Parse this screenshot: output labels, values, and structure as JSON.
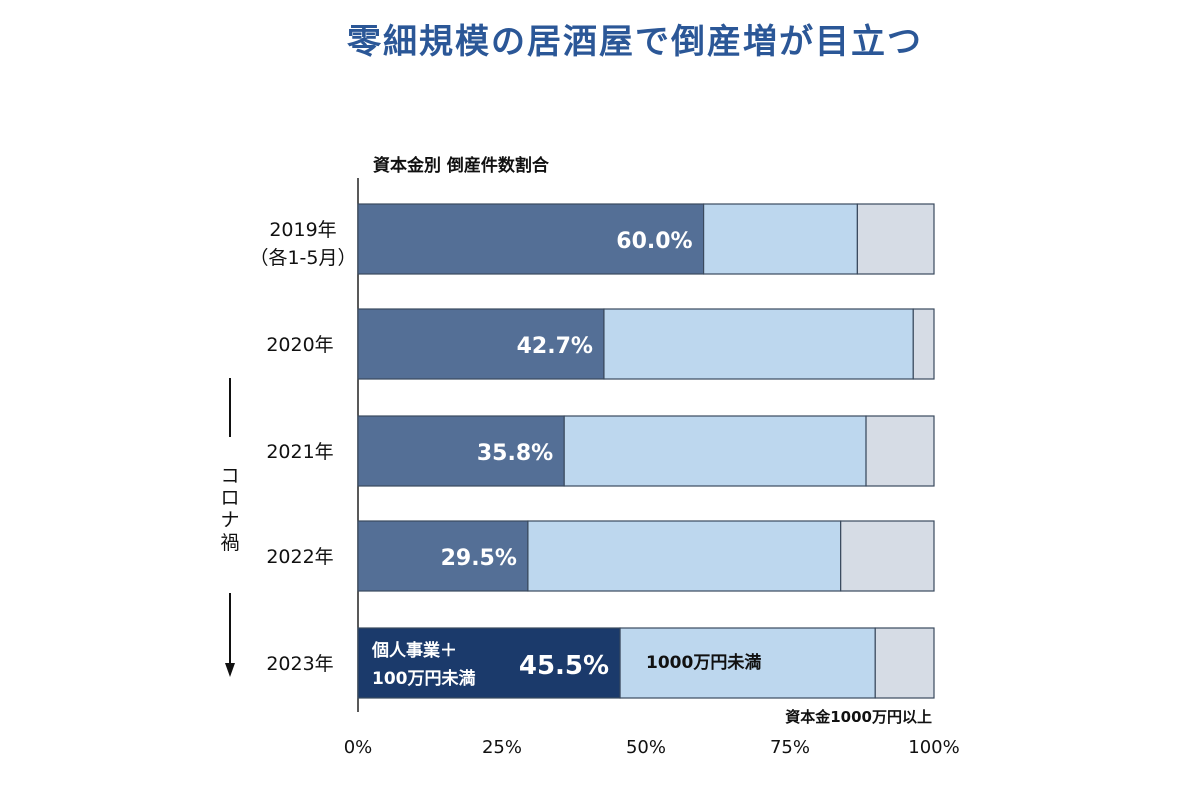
{
  "title": "零細規模の居酒屋で倒産増が目立つ",
  "chart_data": {
    "type": "bar",
    "stacked": true,
    "orientation": "horizontal",
    "subtitle": "資本金別 倒産件数割合",
    "categories": [
      [
        "2019年",
        "（各1-5月）"
      ],
      [
        "2020年"
      ],
      [
        "2021年"
      ],
      [
        "2022年"
      ],
      [
        "2023年"
      ]
    ],
    "series": [
      {
        "name": "個人事業＋\n100万円未満",
        "values": [
          60.0,
          42.7,
          35.8,
          29.5,
          45.5
        ],
        "color": "#546f96",
        "highlight_color": "#1b3a6b"
      },
      {
        "name": "1000万円未満",
        "values": [
          26.7,
          53.7,
          52.4,
          54.3,
          44.3
        ],
        "color": "#bdd7ee"
      },
      {
        "name": "資本金1000万円以上",
        "values": [
          13.3,
          3.6,
          11.8,
          16.2,
          10.2
        ],
        "color": "#d6dce5"
      }
    ],
    "data_labels": [
      "60.0%",
      "42.7%",
      "35.8%",
      "29.5%",
      "45.5%"
    ],
    "x_ticks": [
      "0%",
      "25%",
      "50%",
      "75%",
      "100%"
    ],
    "xlim": [
      0,
      100
    ],
    "annotation": {
      "text": [
        "コ",
        "ロ",
        "ナ",
        "禍"
      ],
      "spans": [
        "2021年",
        "2023年"
      ]
    }
  }
}
